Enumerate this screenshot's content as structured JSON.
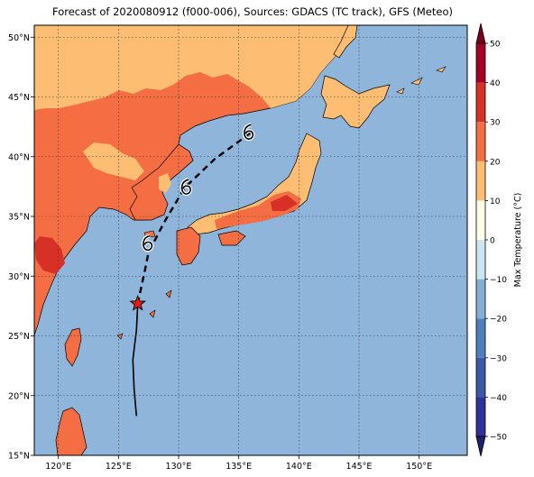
{
  "title": "Forecast of 2020080912 (f000-006), Sources: GDACS (TC track), GFS (Meteo)",
  "map": {
    "lon_range": [
      118,
      154
    ],
    "lat_range": [
      15,
      51
    ],
    "lon_ticks": [
      {
        "value": 120,
        "label": "120°E"
      },
      {
        "value": 125,
        "label": "125°E"
      },
      {
        "value": 130,
        "label": "130°E"
      },
      {
        "value": 135,
        "label": "135°E"
      },
      {
        "value": 140,
        "label": "140°E"
      },
      {
        "value": 145,
        "label": "145°E"
      },
      {
        "value": 150,
        "label": "150°E"
      }
    ],
    "lat_ticks": [
      {
        "value": 15,
        "label": "15°N"
      },
      {
        "value": 20,
        "label": "20°N"
      },
      {
        "value": 25,
        "label": "25°N"
      },
      {
        "value": 30,
        "label": "30°N"
      },
      {
        "value": 35,
        "label": "35°N"
      },
      {
        "value": 40,
        "label": "40°N"
      },
      {
        "value": 45,
        "label": "45°N"
      },
      {
        "value": 50,
        "label": "50°N"
      }
    ],
    "gridlines": true,
    "colors": {
      "ocean": "#8fb5db",
      "temp_10_20": "#fdbe73",
      "temp_20_30": "#f46d43",
      "temp_30_40": "#d73027"
    }
  },
  "track": {
    "past": [
      [
        126.5,
        18.3
      ],
      [
        126.3,
        20.5
      ],
      [
        126.2,
        23.0
      ],
      [
        126.5,
        25.5
      ],
      [
        126.6,
        27.7
      ]
    ],
    "forecast": [
      [
        126.6,
        27.7
      ],
      [
        127.2,
        30.5
      ],
      [
        127.5,
        32.0
      ],
      [
        128.8,
        34.5
      ],
      [
        130.5,
        37.4
      ],
      [
        133.0,
        39.8
      ],
      [
        136.0,
        42.0
      ]
    ],
    "current_position": [
      126.6,
      27.7
    ],
    "cyclone_symbols": [
      {
        "lon": 127.4,
        "lat": 32.7
      },
      {
        "lon": 130.6,
        "lat": 37.4
      },
      {
        "lon": 135.8,
        "lat": 42.0
      }
    ]
  },
  "colorbar": {
    "label": "Max Temperature (°C)",
    "min": -50,
    "max": 50,
    "extend": "both",
    "tick_labels": [
      "−50",
      "−40",
      "−30",
      "−20",
      "−10",
      "0",
      "10",
      "20",
      "30",
      "40",
      "50"
    ],
    "bands": [
      {
        "from": -50,
        "to": -40,
        "color": "#30309a"
      },
      {
        "from": -40,
        "to": -30,
        "color": "#3d58a8"
      },
      {
        "from": -30,
        "to": -20,
        "color": "#4c7fbb"
      },
      {
        "from": -20,
        "to": -10,
        "color": "#84aed3"
      },
      {
        "from": -10,
        "to": 0,
        "color": "#cbe6f0"
      },
      {
        "from": 0,
        "to": 10,
        "color": "#fefee4"
      },
      {
        "from": 10,
        "to": 20,
        "color": "#fdbe73"
      },
      {
        "from": 20,
        "to": 30,
        "color": "#f46d43"
      },
      {
        "from": 30,
        "to": 40,
        "color": "#d73027"
      },
      {
        "from": 40,
        "to": 50,
        "color": "#a50026"
      }
    ],
    "extend_low_color": "#20206a",
    "extend_high_color": "#7a0020"
  }
}
